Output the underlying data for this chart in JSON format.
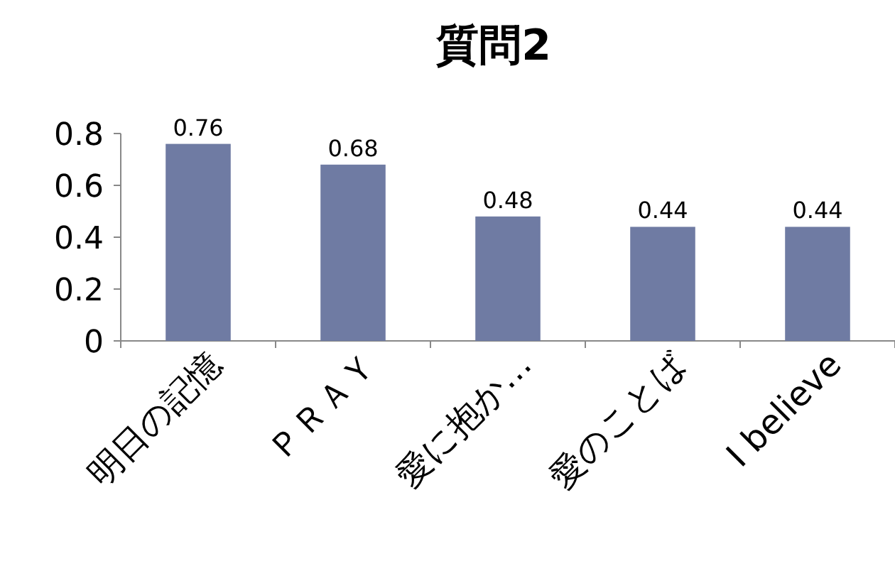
{
  "chart_data": {
    "type": "bar",
    "title": "質問2",
    "categories": [
      "明日の記憶",
      "ＰＲＡＹ",
      "愛に抱か…",
      "愛のことば",
      "I believe"
    ],
    "values": [
      0.76,
      0.68,
      0.48,
      0.44,
      0.44
    ],
    "color": "#6f7ba3",
    "ylim": [
      0,
      0.8
    ],
    "yticks": [
      0,
      0.2,
      0.4,
      0.6,
      0.8
    ],
    "data_labels": true
  }
}
